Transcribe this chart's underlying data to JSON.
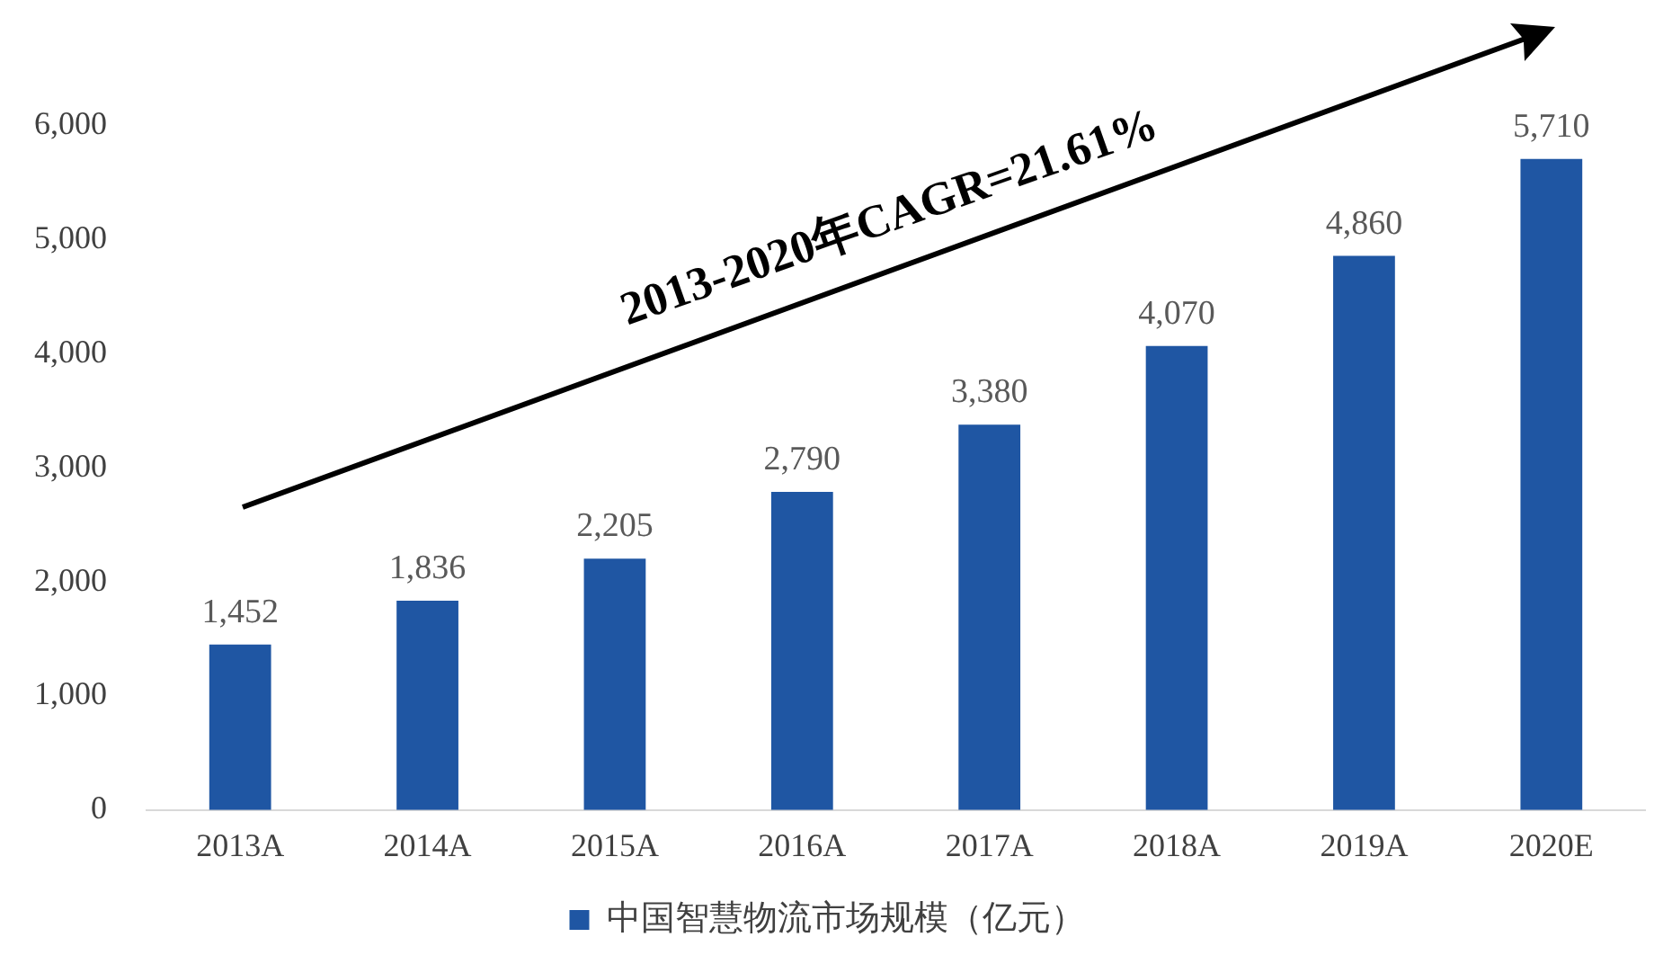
{
  "chart_data": {
    "type": "bar",
    "categories": [
      "2013A",
      "2014A",
      "2015A",
      "2016A",
      "2017A",
      "2018A",
      "2019A",
      "2020E"
    ],
    "series": [
      {
        "name": "中国智慧物流市场规模（亿元）",
        "color": "#1f56a3",
        "values": [
          1452,
          1836,
          2205,
          2790,
          3380,
          4070,
          4860,
          5710
        ],
        "value_labels": [
          "1,452",
          "1,836",
          "2,205",
          "2,790",
          "3,380",
          "4,070",
          "4,860",
          "5,710"
        ]
      }
    ],
    "ylim": [
      0,
      6000
    ],
    "yticks": [
      {
        "value": 0,
        "label": "0"
      },
      {
        "value": 1000,
        "label": "1,000"
      },
      {
        "value": 2000,
        "label": "2,000"
      },
      {
        "value": 3000,
        "label": "3,000"
      },
      {
        "value": 4000,
        "label": "4,000"
      },
      {
        "value": 5000,
        "label": "5,000"
      },
      {
        "value": 6000,
        "label": "6,000"
      }
    ],
    "grid": false,
    "legend": "bottom",
    "annotations": [
      "2013-2020年CAGR=21.61%"
    ]
  }
}
